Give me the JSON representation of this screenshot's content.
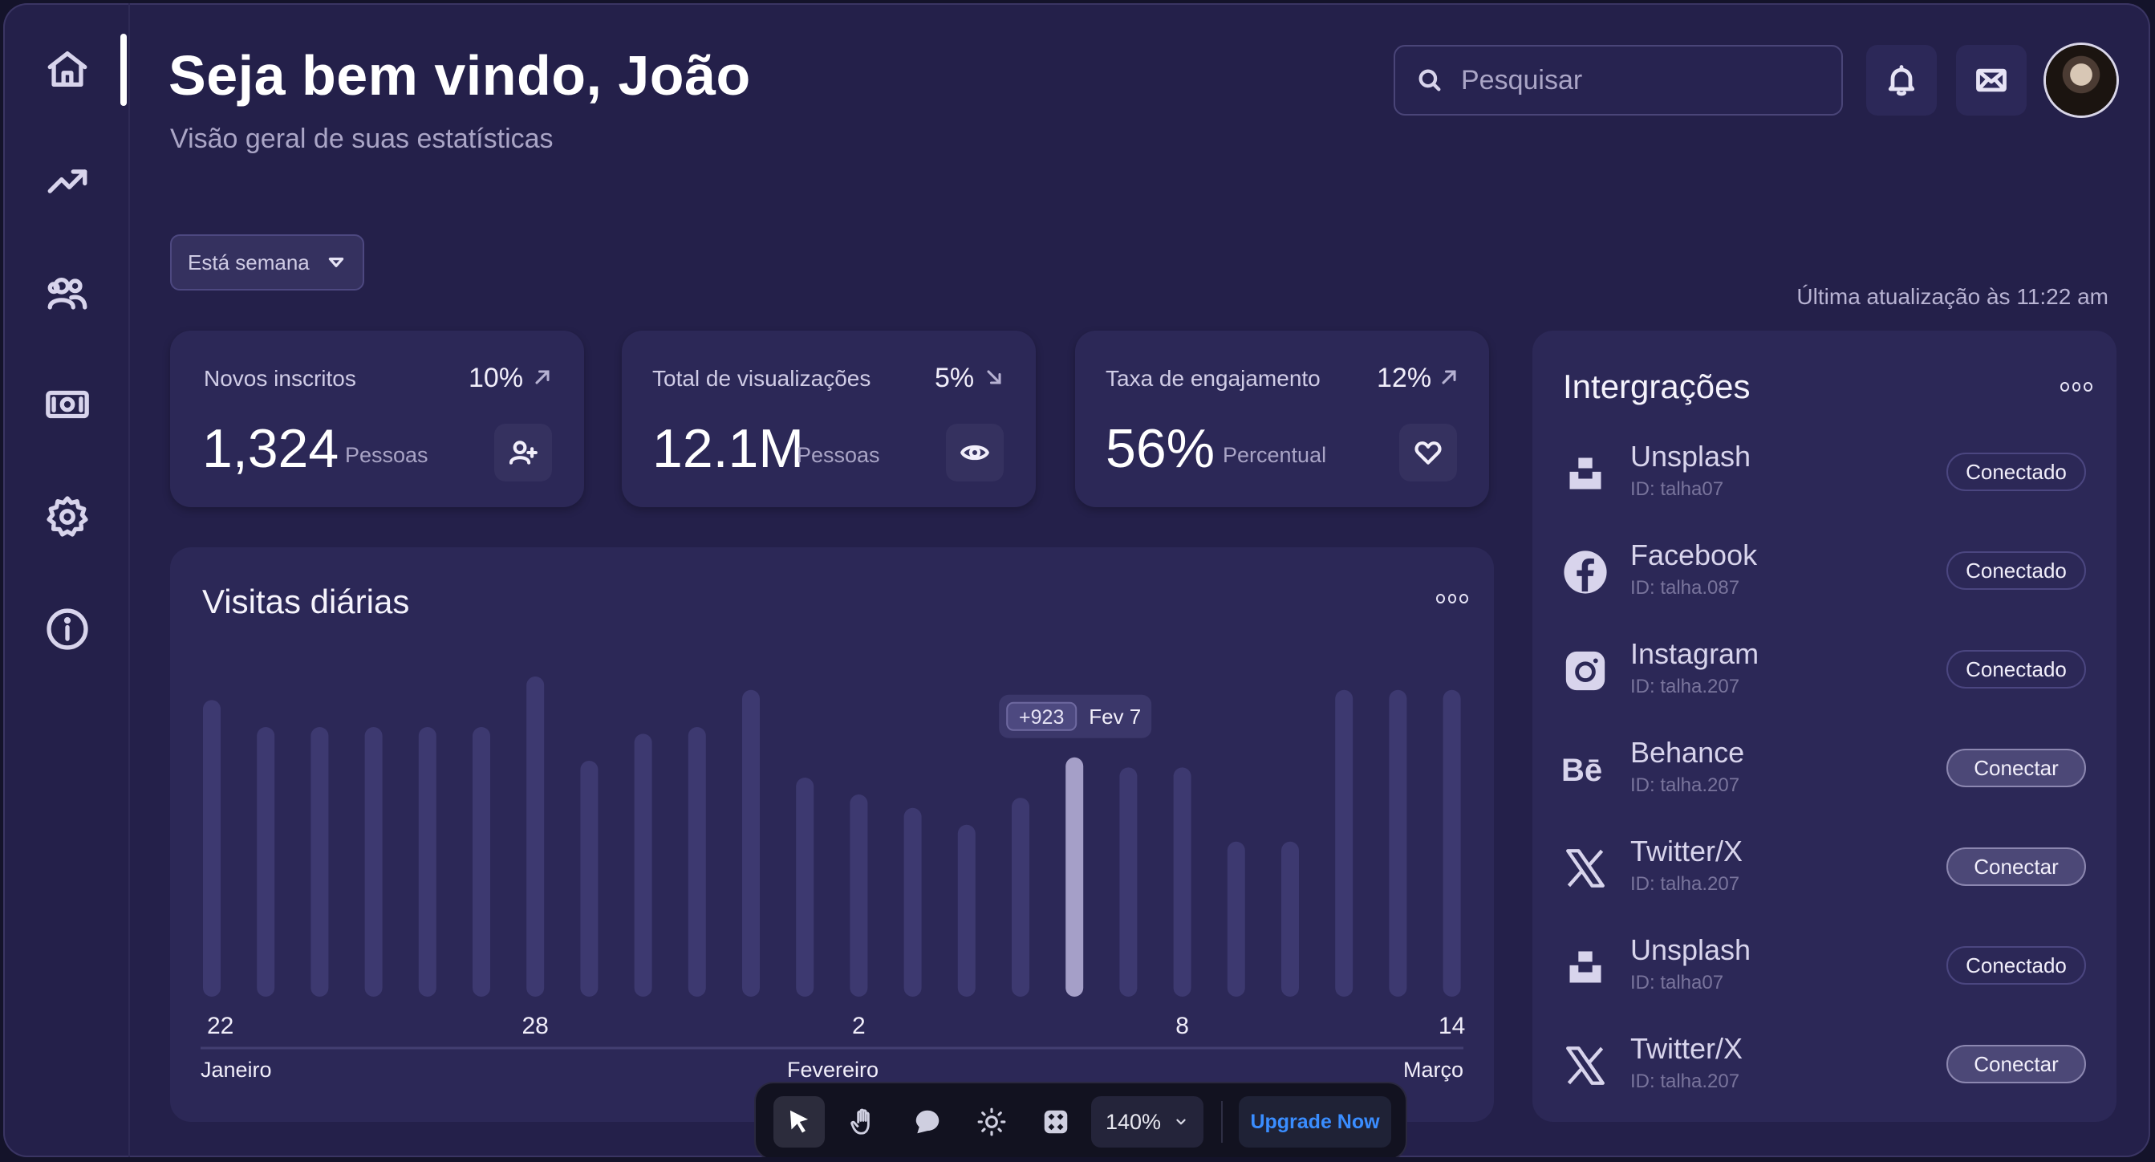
{
  "header": {
    "title": "Seja bem vindo, João",
    "subtitle": "Visão geral de suas estatísticas",
    "search_placeholder": "Pesquisar"
  },
  "sidebar": {
    "items": [
      {
        "name": "home",
        "icon": "home-icon"
      },
      {
        "name": "trending",
        "icon": "trending-up-icon"
      },
      {
        "name": "users",
        "icon": "users-icon"
      },
      {
        "name": "money",
        "icon": "money-icon"
      },
      {
        "name": "settings",
        "icon": "gear-icon"
      },
      {
        "name": "info",
        "icon": "info-icon"
      }
    ]
  },
  "filter": {
    "label": "Está semana"
  },
  "last_update": "Última atualização às 11:22 am",
  "stats": [
    {
      "label": "Novos inscritos",
      "pct": "10%",
      "trend": "up",
      "value": "1,324",
      "unit": "Pessoas",
      "icon": "add-user-icon"
    },
    {
      "label": "Total de visualizações",
      "pct": "5%",
      "trend": "down",
      "value": "12.1M",
      "unit": "Pessoas",
      "icon": "eye-icon"
    },
    {
      "label": "Taxa de engajamento",
      "pct": "12%",
      "trend": "up",
      "value": "56%",
      "unit": "Percentual",
      "icon": "heart-icon"
    }
  ],
  "chart_data": {
    "type": "bar",
    "title": "Visitas diárias",
    "x_tick_labels": [
      "22",
      "28",
      "2",
      "8",
      "14"
    ],
    "month_labels": [
      "Janeiro",
      "Fevereiro",
      "Março"
    ],
    "values": [
      0.88,
      0.8,
      0.8,
      0.8,
      0.8,
      0.8,
      0.95,
      0.7,
      0.78,
      0.8,
      0.91,
      0.65,
      0.6,
      0.56,
      0.51,
      0.59,
      0.71,
      0.68,
      0.68,
      0.46,
      0.46,
      0.91,
      0.91,
      0.91
    ],
    "highlight_index": 16,
    "tooltip": {
      "value": "+923",
      "date": "Fev 7"
    },
    "colors": {
      "bar": "#3d3970",
      "highlight": "#a59fc8"
    }
  },
  "integrations": {
    "title": "Intergrações",
    "items": [
      {
        "name": "Unsplash",
        "id": "ID: talha07",
        "status": "Conectado",
        "connected": true,
        "icon": "unsplash-icon"
      },
      {
        "name": "Facebook",
        "id": "ID: talha.087",
        "status": "Conectado",
        "connected": true,
        "icon": "facebook-icon"
      },
      {
        "name": "Instagram",
        "id": "ID: talha.207",
        "status": "Conectado",
        "connected": true,
        "icon": "instagram-icon"
      },
      {
        "name": "Behance",
        "id": "ID: talha.207",
        "status": "Conectar",
        "connected": false,
        "icon": "behance-icon"
      },
      {
        "name": "Twitter/X",
        "id": "ID: talha.207",
        "status": "Conectar",
        "connected": false,
        "icon": "x-icon"
      },
      {
        "name": "Unsplash",
        "id": "ID: talha07",
        "status": "Conectado",
        "connected": true,
        "icon": "unsplash-icon"
      },
      {
        "name": "Twitter/X",
        "id": "ID: talha.207",
        "status": "Conectar",
        "connected": false,
        "icon": "x-icon"
      }
    ]
  },
  "toolbar": {
    "zoom": "140%",
    "upgrade_label": "Upgrade Now"
  }
}
